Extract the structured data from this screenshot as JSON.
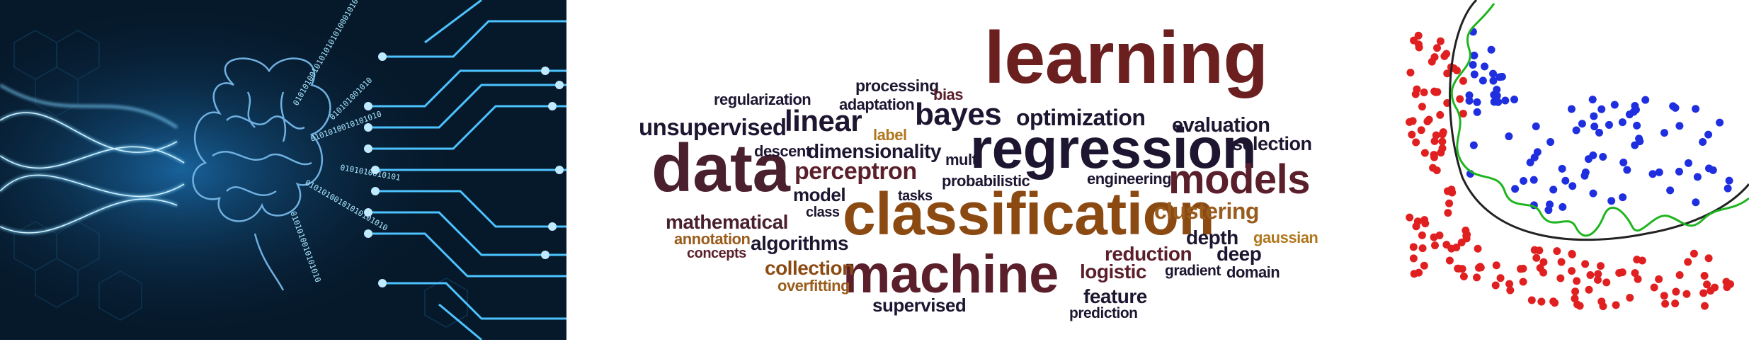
{
  "wordcloud": {
    "words": [
      {
        "text": "learning",
        "color": "#6b1f1f"
      },
      {
        "text": "regression",
        "color": "#1e1631"
      },
      {
        "text": "classification",
        "color": "#8c4a13"
      },
      {
        "text": "machine",
        "color": "#5a1f2a"
      },
      {
        "text": "data",
        "color": "#4a1f2e"
      },
      {
        "text": "models",
        "color": "#5a1f2a"
      },
      {
        "text": "bayes",
        "color": "#1e1631"
      },
      {
        "text": "linear",
        "color": "#1e1631"
      },
      {
        "text": "perceptron",
        "color": "#5a1f2a"
      },
      {
        "text": "unsupervised",
        "color": "#1e1631"
      },
      {
        "text": "optimization",
        "color": "#1e1631"
      },
      {
        "text": "clustering",
        "color": "#9a5c1c"
      },
      {
        "text": "mathematical",
        "color": "#4a1f2e"
      },
      {
        "text": "algorithms",
        "color": "#1e1631"
      },
      {
        "text": "collection",
        "color": "#8c4a13"
      },
      {
        "text": "evaluation",
        "color": "#1e1631"
      },
      {
        "text": "selection",
        "color": "#1e1631"
      },
      {
        "text": "dimensionality",
        "color": "#1e1631"
      },
      {
        "text": "logistic",
        "color": "#5a1f2a"
      },
      {
        "text": "reduction",
        "color": "#5a1f2a"
      },
      {
        "text": "depth",
        "color": "#1e1631"
      },
      {
        "text": "deep",
        "color": "#1e1631"
      },
      {
        "text": "feature",
        "color": "#1e1631"
      },
      {
        "text": "supervised",
        "color": "#1e1631"
      },
      {
        "text": "model",
        "color": "#1e1631"
      },
      {
        "text": "overfitting",
        "color": "#9a5c1c"
      },
      {
        "text": "processing",
        "color": "#1e1631"
      },
      {
        "text": "regularization",
        "color": "#1e1631"
      },
      {
        "text": "adaptation",
        "color": "#1e1631"
      },
      {
        "text": "bias",
        "color": "#5a1f2a"
      },
      {
        "text": "label",
        "color": "#b0781e"
      },
      {
        "text": "descent",
        "color": "#1e1631"
      },
      {
        "text": "multi",
        "color": "#1e1631"
      },
      {
        "text": "probabilistic",
        "color": "#1e1631"
      },
      {
        "text": "engineering",
        "color": "#1e1631"
      },
      {
        "text": "tasks",
        "color": "#1e1631"
      },
      {
        "text": "class",
        "color": "#1e1631"
      },
      {
        "text": "annotation",
        "color": "#9a5c1c"
      },
      {
        "text": "concepts",
        "color": "#5a1f2a"
      },
      {
        "text": "gaussian",
        "color": "#b0781e"
      },
      {
        "text": "gradient",
        "color": "#1e1631"
      },
      {
        "text": "domain",
        "color": "#1e1631"
      },
      {
        "text": "prediction",
        "color": "#1e1631"
      }
    ]
  },
  "brain_image": {
    "binary_text": "01010100101010101010001010"
  },
  "scatter": {
    "class_a_color": "#e02020",
    "class_b_color": "#1f2fe0",
    "boundary_smooth_color": "#222222",
    "boundary_overfit_color": "#1fb51f"
  }
}
